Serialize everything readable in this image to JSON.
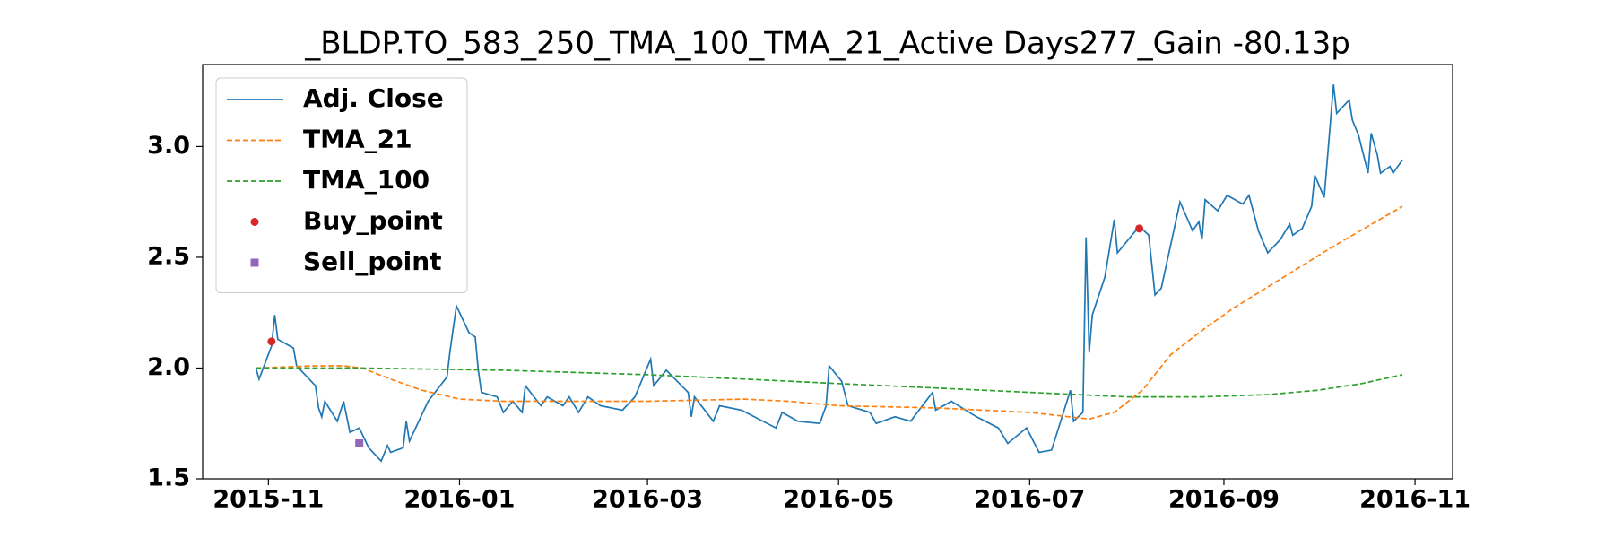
{
  "chart_data": {
    "type": "line",
    "title": "_BLDP.TO_583_250_TMA_100_TMA_21_Active Days277_Gain -80.13p",
    "xlim": [
      "2015-10-11",
      "2016-11-13"
    ],
    "ylim": [
      1.5,
      3.37
    ],
    "xticks": [
      {
        "value": "2015-11-01",
        "label": "2015-11"
      },
      {
        "value": "2016-01-01",
        "label": "2016-01"
      },
      {
        "value": "2016-03-01",
        "label": "2016-03"
      },
      {
        "value": "2016-05-01",
        "label": "2016-05"
      },
      {
        "value": "2016-07-01",
        "label": "2016-07"
      },
      {
        "value": "2016-09-01",
        "label": "2016-09"
      },
      {
        "value": "2016-11-01",
        "label": "2016-11"
      }
    ],
    "yticks": [
      1.5,
      {
        "value": 2,
        "label": "2.0"
      },
      2.5,
      {
        "value": 3,
        "label": "3.0"
      }
    ],
    "grid": false,
    "legend": "upper left",
    "series": [
      {
        "name": "Adj. Close",
        "color": "#1f77b4",
        "style": "solid",
        "x": [
          "2015-10-28",
          "2015-10-29",
          "2015-11-02",
          "2015-11-03",
          "2015-11-04",
          "2015-11-09",
          "2015-11-10",
          "2015-11-16",
          "2015-11-17",
          "2015-11-18",
          "2015-11-19",
          "2015-11-23",
          "2015-11-25",
          "2015-11-27",
          "2015-11-30",
          "2015-12-03",
          "2015-12-07",
          "2015-12-09",
          "2015-12-10",
          "2015-12-14",
          "2015-12-15",
          "2015-12-16",
          "2015-12-22",
          "2015-12-28",
          "2015-12-29",
          "2015-12-31",
          "2016-01-04",
          "2016-01-06",
          "2016-01-07",
          "2016-01-08",
          "2016-01-13",
          "2016-01-15",
          "2016-01-18",
          "2016-01-21",
          "2016-01-22",
          "2016-01-27",
          "2016-01-29",
          "2016-02-03",
          "2016-02-05",
          "2016-02-08",
          "2016-02-11",
          "2016-02-15",
          "2016-02-22",
          "2016-02-26",
          "2016-03-02",
          "2016-03-03",
          "2016-03-07",
          "2016-03-14",
          "2016-03-15",
          "2016-03-16",
          "2016-03-22",
          "2016-03-24",
          "2016-03-31",
          "2016-04-11",
          "2016-04-13",
          "2016-04-18",
          "2016-04-25",
          "2016-04-27",
          "2016-04-28",
          "2016-05-02",
          "2016-05-04",
          "2016-05-11",
          "2016-05-13",
          "2016-05-19",
          "2016-05-24",
          "2016-05-31",
          "2016-06-01",
          "2016-06-06",
          "2016-06-14",
          "2016-06-21",
          "2016-06-24",
          "2016-06-30",
          "2016-07-04",
          "2016-07-08",
          "2016-07-14",
          "2016-07-15",
          "2016-07-18",
          "2016-07-19",
          "2016-07-20",
          "2016-07-21",
          "2016-07-25",
          "2016-07-28",
          "2016-07-29",
          "2016-08-05",
          "2016-08-08",
          "2016-08-10",
          "2016-08-12",
          "2016-08-18",
          "2016-08-22",
          "2016-08-24",
          "2016-08-25",
          "2016-08-26",
          "2016-08-30",
          "2016-09-02",
          "2016-09-07",
          "2016-09-09",
          "2016-09-12",
          "2016-09-15",
          "2016-09-19",
          "2016-09-22",
          "2016-09-23",
          "2016-09-26",
          "2016-09-29",
          "2016-09-30",
          "2016-10-03",
          "2016-10-06",
          "2016-10-07",
          "2016-10-11",
          "2016-10-12",
          "2016-10-14",
          "2016-10-17",
          "2016-10-18",
          "2016-10-20",
          "2016-10-21",
          "2016-10-24",
          "2016-10-25",
          "2016-10-28"
        ],
        "values": [
          2.0,
          1.95,
          2.1,
          2.24,
          2.13,
          2.09,
          2.01,
          1.92,
          1.82,
          1.78,
          1.85,
          1.76,
          1.85,
          1.71,
          1.73,
          1.64,
          1.58,
          1.65,
          1.62,
          1.64,
          1.76,
          1.67,
          1.85,
          1.96,
          2.08,
          2.28,
          2.16,
          2.14,
          1.99,
          1.89,
          1.87,
          1.8,
          1.85,
          1.8,
          1.92,
          1.83,
          1.87,
          1.83,
          1.87,
          1.8,
          1.87,
          1.83,
          1.81,
          1.87,
          2.04,
          1.92,
          1.99,
          1.89,
          1.78,
          1.87,
          1.76,
          1.83,
          1.81,
          1.73,
          1.8,
          1.76,
          1.75,
          1.83,
          2.01,
          1.94,
          1.83,
          1.8,
          1.75,
          1.78,
          1.76,
          1.89,
          1.81,
          1.85,
          1.78,
          1.73,
          1.66,
          1.73,
          1.62,
          1.63,
          1.9,
          1.76,
          1.8,
          2.59,
          2.07,
          2.24,
          2.41,
          2.67,
          2.52,
          2.64,
          2.6,
          2.33,
          2.36,
          2.75,
          2.62,
          2.66,
          2.58,
          2.76,
          2.71,
          2.78,
          2.74,
          2.78,
          2.62,
          2.52,
          2.58,
          2.65,
          2.6,
          2.63,
          2.73,
          2.87,
          2.77,
          3.28,
          3.15,
          3.21,
          3.12,
          3.05,
          2.88,
          3.06,
          2.96,
          2.88,
          2.91,
          2.88,
          2.94
        ]
      },
      {
        "name": "TMA_21",
        "color": "#ff7f0e",
        "style": "dashed",
        "x": [
          "2015-10-28",
          "2015-11-15",
          "2015-11-25",
          "2015-12-01",
          "2015-12-10",
          "2015-12-20",
          "2016-01-01",
          "2016-01-15",
          "2016-02-01",
          "2016-03-01",
          "2016-04-01",
          "2016-04-15",
          "2016-05-01",
          "2016-06-01",
          "2016-07-01",
          "2016-07-20",
          "2016-07-28",
          "2016-08-06",
          "2016-08-15",
          "2016-08-25",
          "2016-09-04",
          "2016-09-20",
          "2016-10-06",
          "2016-10-28"
        ],
        "values": [
          2.0,
          2.01,
          2.01,
          2.0,
          1.95,
          1.9,
          1.86,
          1.85,
          1.85,
          1.85,
          1.86,
          1.85,
          1.83,
          1.82,
          1.8,
          1.77,
          1.8,
          1.9,
          2.06,
          2.17,
          2.27,
          2.41,
          2.55,
          2.73
        ]
      },
      {
        "name": "TMA_100",
        "color": "#2ca02c",
        "style": "dashed",
        "x": [
          "2015-10-28",
          "2015-12-01",
          "2016-01-15",
          "2016-03-01",
          "2016-04-01",
          "2016-05-01",
          "2016-06-01",
          "2016-07-01",
          "2016-08-01",
          "2016-08-25",
          "2016-09-15",
          "2016-10-01",
          "2016-10-15",
          "2016-10-28"
        ],
        "values": [
          2.0,
          2.0,
          1.99,
          1.97,
          1.95,
          1.93,
          1.91,
          1.89,
          1.87,
          1.87,
          1.88,
          1.9,
          1.93,
          1.97
        ]
      },
      {
        "name": "Buy_point",
        "color": "#d62728",
        "style": "circle",
        "x": [
          "2015-11-02",
          "2016-08-05"
        ],
        "values": [
          2.12,
          2.63
        ]
      },
      {
        "name": "Sell_point",
        "color": "#9467bd",
        "style": "square",
        "x": [
          "2015-11-30"
        ],
        "values": [
          1.66
        ]
      }
    ]
  }
}
